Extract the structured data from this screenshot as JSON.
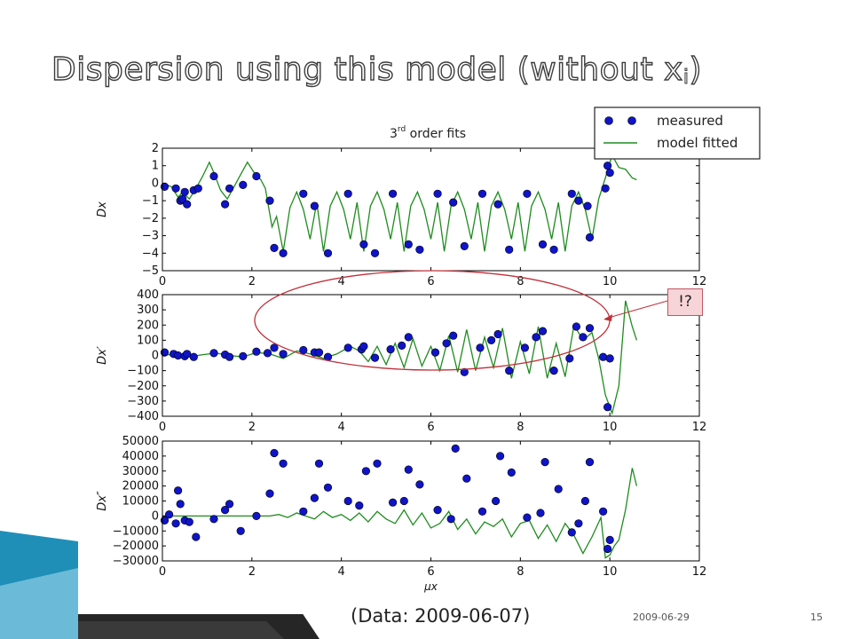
{
  "slide": {
    "title": "Dispersion using this model (without x",
    "title_subscript": "i",
    "title_close": ")",
    "data_note": "(Data: 2009-06-07)",
    "date": "2009-06-29",
    "page_number": "15",
    "callout": "!?"
  },
  "colors": {
    "measured": "#0f14c8",
    "model": "#1e8c1e",
    "ellipse": "#c0303a",
    "decor_blue": "#1f8fb8"
  },
  "chart_data": {
    "type": "line",
    "title": "3rd order fits",
    "title_base": "3",
    "title_sup": "rd",
    "title_rest": " order fits",
    "legend": {
      "position": "top-right",
      "entries": [
        "measured",
        "model fitted"
      ]
    },
    "x_ticks": [
      "0",
      "2",
      "4",
      "6",
      "8",
      "10",
      "12"
    ],
    "xlim": [
      0,
      12
    ],
    "xlabel": "μx",
    "grid": false,
    "panels": [
      {
        "ylabel": "Dx",
        "ylim": [
          -5,
          2
        ],
        "y_ticks": [
          "2",
          "1",
          "0",
          "−1",
          "−2",
          "−3",
          "−4",
          "−5"
        ],
        "measured": {
          "x": [
            0.05,
            0.3,
            0.4,
            0.45,
            0.5,
            0.55,
            0.7,
            0.8,
            1.15,
            1.4,
            1.5,
            1.8,
            2.1,
            2.4,
            2.5,
            2.7,
            3.15,
            3.4,
            3.7,
            4.15,
            4.5,
            4.75,
            5.15,
            5.5,
            5.75,
            6.15,
            6.5,
            6.75,
            7.15,
            7.5,
            7.75,
            8.15,
            8.5,
            8.75,
            9.15,
            9.3,
            9.5,
            9.55,
            9.9,
            9.95,
            10.0
          ],
          "y": [
            -0.2,
            -0.3,
            -1.0,
            -0.9,
            -0.5,
            -1.2,
            -0.4,
            -0.3,
            0.4,
            -1.2,
            -0.3,
            -0.1,
            0.4,
            -1.0,
            -3.7,
            -4.0,
            -0.6,
            -1.3,
            -4.0,
            -0.6,
            -3.5,
            -4.0,
            -0.6,
            -3.5,
            -3.8,
            -0.6,
            -1.1,
            -3.6,
            -0.6,
            -1.2,
            -3.8,
            -0.6,
            -3.5,
            -3.8,
            -0.6,
            -1.0,
            -1.3,
            -3.1,
            -0.3,
            1.0,
            0.6
          ]
        },
        "model": {
          "x": [
            0,
            0.2,
            0.35,
            0.45,
            0.6,
            0.75,
            0.9,
            1.05,
            1.15,
            1.3,
            1.45,
            1.6,
            1.75,
            1.9,
            2.05,
            2.2,
            2.3,
            2.45,
            2.55,
            2.7,
            2.85,
            3.0,
            3.15,
            3.3,
            3.45,
            3.6,
            3.75,
            3.9,
            4.05,
            4.2,
            4.35,
            4.5,
            4.65,
            4.8,
            4.95,
            5.1,
            5.25,
            5.4,
            5.55,
            5.7,
            5.85,
            6.0,
            6.15,
            6.3,
            6.45,
            6.6,
            6.75,
            6.9,
            7.05,
            7.2,
            7.35,
            7.5,
            7.65,
            7.8,
            7.95,
            8.1,
            8.25,
            8.4,
            8.55,
            8.7,
            8.85,
            9.0,
            9.15,
            9.3,
            9.45,
            9.6,
            9.75,
            9.9,
            10.05,
            10.2,
            10.35,
            10.5,
            10.6
          ],
          "y": [
            0,
            -0.2,
            -0.8,
            -0.5,
            -0.9,
            -0.3,
            0.4,
            1.2,
            0.6,
            -0.4,
            -0.9,
            -0.2,
            0.5,
            1.2,
            0.6,
            0.2,
            -0.3,
            -2.5,
            -1.9,
            -3.9,
            -1.4,
            -0.5,
            -1.5,
            -3.2,
            -1.1,
            -3.9,
            -1.3,
            -0.5,
            -1.5,
            -3.2,
            -1.1,
            -3.9,
            -1.3,
            -0.5,
            -1.5,
            -3.2,
            -1.1,
            -3.9,
            -1.3,
            -0.5,
            -1.5,
            -3.2,
            -1.1,
            -3.9,
            -1.3,
            -0.5,
            -1.5,
            -3.2,
            -1.1,
            -3.9,
            -1.3,
            -0.5,
            -1.5,
            -3.2,
            -1.1,
            -3.9,
            -1.3,
            -0.5,
            -1.5,
            -3.2,
            -1.1,
            -3.9,
            -1.3,
            -0.5,
            -1.5,
            -3.2,
            -0.9,
            0.3,
            1.6,
            0.9,
            0.8,
            0.3,
            0.2
          ]
        }
      },
      {
        "ylabel": "Dx′",
        "ylim": [
          -400,
          400
        ],
        "y_ticks": [
          "400",
          "300",
          "200",
          "100",
          "0",
          "−100",
          "−200",
          "−300",
          "−400"
        ],
        "measured": {
          "x": [
            0.05,
            0.25,
            0.35,
            0.5,
            0.55,
            0.7,
            1.15,
            1.4,
            1.5,
            1.8,
            2.1,
            2.35,
            2.5,
            2.7,
            3.15,
            3.4,
            3.5,
            3.7,
            4.15,
            4.45,
            4.5,
            4.75,
            5.1,
            5.35,
            5.5,
            6.1,
            6.35,
            6.5,
            6.75,
            7.1,
            7.35,
            7.5,
            7.75,
            8.1,
            8.35,
            8.5,
            8.75,
            9.1,
            9.25,
            9.4,
            9.55,
            9.85,
            9.95,
            10.0
          ],
          "y": [
            20,
            10,
            0,
            -5,
            10,
            -10,
            15,
            5,
            -10,
            -5,
            25,
            15,
            50,
            10,
            35,
            20,
            20,
            -10,
            50,
            40,
            60,
            -15,
            40,
            65,
            120,
            20,
            80,
            130,
            -110,
            50,
            100,
            140,
            -100,
            50,
            120,
            160,
            -100,
            -20,
            190,
            120,
            180,
            -10,
            -340,
            -20
          ]
        },
        "model": {
          "x": [
            0,
            0.3,
            0.6,
            0.9,
            1.2,
            1.5,
            1.8,
            2.1,
            2.4,
            2.7,
            3.0,
            3.3,
            3.6,
            3.9,
            4.2,
            4.4,
            4.6,
            4.8,
            5.0,
            5.2,
            5.4,
            5.6,
            5.8,
            6.0,
            6.2,
            6.4,
            6.6,
            6.8,
            7.0,
            7.2,
            7.4,
            7.6,
            7.8,
            8.0,
            8.2,
            8.4,
            8.6,
            8.8,
            9.0,
            9.2,
            9.4,
            9.6,
            9.75,
            9.9,
            10.05,
            10.2,
            10.35,
            10.5,
            10.6
          ],
          "y": [
            10,
            0,
            -10,
            5,
            15,
            0,
            -10,
            20,
            10,
            -20,
            30,
            10,
            -20,
            10,
            60,
            30,
            -40,
            60,
            -60,
            80,
            -80,
            110,
            -70,
            60,
            -100,
            130,
            -110,
            170,
            -100,
            120,
            -80,
            180,
            -150,
            90,
            -120,
            190,
            -150,
            80,
            -140,
            200,
            100,
            150,
            -20,
            -260,
            -380,
            -200,
            360,
            190,
            100
          ]
        }
      },
      {
        "ylabel": "Dx″",
        "ylim": [
          -30000,
          50000
        ],
        "y_ticks": [
          "50000",
          "40000",
          "30000",
          "20000",
          "10000",
          "0",
          "−10000",
          "−20000",
          "−30000"
        ],
        "measured": {
          "x": [
            0.05,
            0.15,
            0.3,
            0.35,
            0.4,
            0.5,
            0.6,
            0.75,
            1.15,
            1.4,
            1.5,
            1.75,
            2.1,
            2.4,
            2.5,
            2.7,
            3.15,
            3.4,
            3.5,
            3.7,
            4.15,
            4.4,
            4.55,
            4.8,
            5.15,
            5.4,
            5.5,
            5.75,
            6.15,
            6.45,
            6.55,
            6.8,
            7.15,
            7.45,
            7.55,
            7.8,
            8.15,
            8.45,
            8.55,
            8.85,
            9.15,
            9.3,
            9.45,
            9.55,
            9.85,
            9.95,
            10.0
          ],
          "y": [
            -3000,
            1000,
            -5000,
            17000,
            8000,
            -3000,
            -4000,
            -14000,
            -2000,
            4000,
            8000,
            -10000,
            0,
            15000,
            42000,
            35000,
            3000,
            12000,
            35000,
            19000,
            10000,
            7000,
            30000,
            35000,
            9000,
            10000,
            31000,
            21000,
            4000,
            -2000,
            45000,
            25000,
            3000,
            10000,
            40000,
            29000,
            -1000,
            2000,
            36000,
            18000,
            -11000,
            -5000,
            10000,
            36000,
            3000,
            -22000,
            -16000
          ]
        },
        "model": {
          "x": [
            0,
            0.5,
            1.0,
            1.5,
            2.0,
            2.4,
            2.6,
            2.8,
            3.0,
            3.2,
            3.4,
            3.6,
            3.8,
            4.0,
            4.2,
            4.4,
            4.6,
            4.8,
            5.0,
            5.2,
            5.4,
            5.6,
            5.8,
            6.0,
            6.2,
            6.4,
            6.6,
            6.8,
            7.0,
            7.2,
            7.4,
            7.6,
            7.8,
            8.0,
            8.2,
            8.4,
            8.6,
            8.8,
            9.0,
            9.2,
            9.4,
            9.6,
            9.8,
            9.9,
            10.0,
            10.1,
            10.2,
            10.35,
            10.5,
            10.6
          ],
          "y": [
            0,
            0,
            0,
            0,
            0,
            0,
            1000,
            -1000,
            2000,
            0,
            -2000,
            3000,
            -1000,
            1000,
            -3000,
            2000,
            -4000,
            3000,
            -2000,
            -5000,
            4000,
            -6000,
            2000,
            -8000,
            -5000,
            3000,
            -9000,
            -2000,
            -12000,
            -4000,
            -7000,
            -2000,
            -14000,
            -5000,
            -3000,
            -15000,
            -6000,
            -17000,
            -5000,
            -13000,
            -25000,
            -14000,
            -1000,
            -28000,
            -26000,
            -20000,
            -16000,
            4000,
            32000,
            20000
          ]
        }
      }
    ]
  }
}
